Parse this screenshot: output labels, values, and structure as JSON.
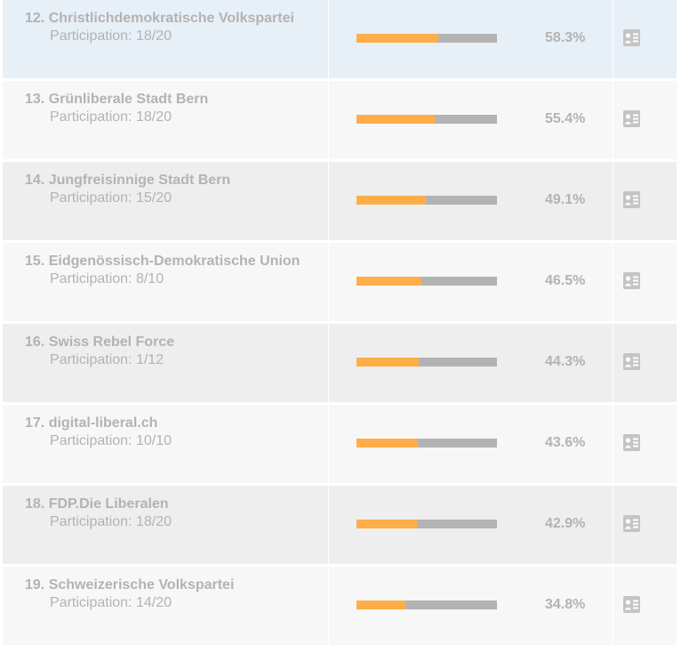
{
  "ranking": {
    "rows": [
      {
        "rank": "12.",
        "name": "Christlichdemokratische Volkspartei",
        "participation_label": "Participation:",
        "participation": "18/20",
        "score": 0.583,
        "percent": "58.3%",
        "icon": "profile-card-icon"
      },
      {
        "rank": "13.",
        "name": "Grünliberale Stadt Bern",
        "participation_label": "Participation:",
        "participation": "18/20",
        "score": 0.554,
        "percent": "55.4%",
        "icon": "profile-card-icon"
      },
      {
        "rank": "14.",
        "name": "Jungfreisinnige Stadt Bern",
        "participation_label": "Participation:",
        "participation": "15/20",
        "score": 0.491,
        "percent": "49.1%",
        "icon": "profile-card-icon"
      },
      {
        "rank": "15.",
        "name": "Eidgenössisch-Demokratische Union",
        "participation_label": "Participation:",
        "participation": "8/10",
        "score": 0.465,
        "percent": "46.5%",
        "icon": "profile-card-icon"
      },
      {
        "rank": "16.",
        "name": "Swiss Rebel Force",
        "participation_label": "Participation:",
        "participation": "1/12",
        "score": 0.443,
        "percent": "44.3%",
        "icon": "profile-card-icon"
      },
      {
        "rank": "17.",
        "name": "digital-liberal.ch",
        "participation_label": "Participation:",
        "participation": "10/10",
        "score": 0.436,
        "percent": "43.6%",
        "icon": "profile-card-icon"
      },
      {
        "rank": "18.",
        "name": "FDP.Die Liberalen",
        "participation_label": "Participation:",
        "participation": "18/20",
        "score": 0.429,
        "percent": "42.9%",
        "icon": "profile-card-icon"
      },
      {
        "rank": "19.",
        "name": "Schweizerische Volkspartei",
        "participation_label": "Participation:",
        "participation": "14/20",
        "score": 0.348,
        "percent": "34.8%",
        "icon": "profile-card-icon"
      }
    ]
  },
  "colors": {
    "bar_fill": "#ffad48",
    "bar_track": "#b3b3b3",
    "text": "#b3b3b3",
    "row_highlight": "#e7eff7",
    "row_light": "#f7f7f7",
    "row_dark": "#eeeeee"
  }
}
